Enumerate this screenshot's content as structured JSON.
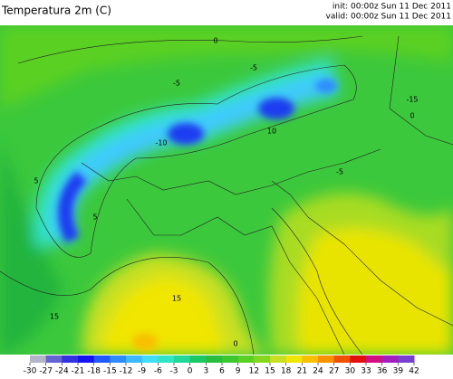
{
  "header": {
    "title": "Temperatura 2m (C)",
    "init": "init: 00:00z Sun 11 Dec 2011",
    "valid": "valid: 00:00z Sun 11 Dec 2011"
  },
  "contour_labels": [
    0,
    -5,
    -5,
    -10,
    5,
    -5,
    0,
    10,
    5,
    0,
    15,
    15,
    -15
  ],
  "colorbar": {
    "ticks": [
      -30,
      -27,
      -24,
      -21,
      -18,
      -15,
      -12,
      -9,
      -6,
      -3,
      0,
      3,
      6,
      9,
      12,
      15,
      18,
      21,
      24,
      27,
      30,
      33,
      36,
      39,
      42
    ],
    "colors": [
      "#b4b4c8",
      "#6464d2",
      "#3232e0",
      "#1414f0",
      "#1e5aff",
      "#2e8cff",
      "#3cb8ff",
      "#40dcf8",
      "#30e4c4",
      "#22d896",
      "#1cc864",
      "#28be3c",
      "#3cc82c",
      "#5ad020",
      "#86d81e",
      "#c8e020",
      "#f0e600",
      "#f8c000",
      "#f89000",
      "#f05000",
      "#e01010",
      "#d01080",
      "#a020c0",
      "#7840d0"
    ]
  }
}
